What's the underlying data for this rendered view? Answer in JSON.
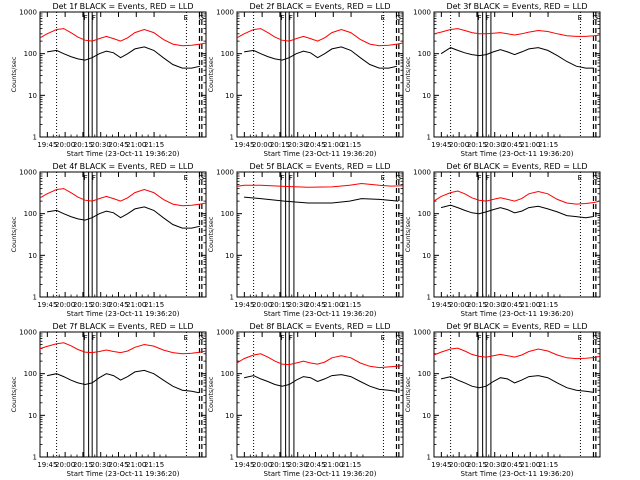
{
  "figure": {
    "xlabel": "Start Time (23-Oct-11 19:36:20)",
    "ylabel": "Counts/sec",
    "xtick_labels": [
      "19:45",
      "20:00",
      "20:15",
      "20:30",
      "20:45",
      "21:00",
      "21:15"
    ],
    "ytick_labels": [
      "1",
      "10",
      "100",
      "1000"
    ],
    "marker_labels": [
      "F",
      "F",
      "E",
      "G"
    ],
    "colors": {
      "events": "#000000",
      "lld": "#ff0000",
      "axes": "#000000"
    }
  },
  "chart_data": [
    {
      "type": "line",
      "title": "Det 1f BLACK = Events, RED = LLD",
      "xlim_min": [
        0,
        100
      ],
      "ylim": [
        1,
        1000
      ],
      "yscale": "log",
      "series": [
        {
          "name": "Events",
          "color": "#000000",
          "x": [
            6,
            14,
            20,
            26,
            32,
            38,
            44,
            50,
            56,
            62,
            68,
            74,
            80,
            88,
            96,
            104,
            112,
            120,
            128,
            135
          ],
          "y": [
            110,
            120,
            100,
            85,
            75,
            70,
            80,
            100,
            115,
            105,
            80,
            100,
            130,
            145,
            120,
            80,
            55,
            45,
            45,
            50
          ]
        },
        {
          "name": "LLD",
          "color": "#ff0000",
          "x": [
            0,
            6,
            14,
            20,
            26,
            32,
            38,
            44,
            50,
            56,
            62,
            68,
            74,
            80,
            88,
            96,
            104,
            112,
            120,
            128,
            135,
            140
          ],
          "y": [
            240,
            300,
            380,
            400,
            320,
            250,
            210,
            200,
            230,
            260,
            230,
            200,
            240,
            320,
            380,
            320,
            220,
            170,
            155,
            160,
            170,
            180
          ]
        }
      ]
    },
    {
      "type": "line",
      "title": "Det 2f BLACK = Events, RED = LLD",
      "xlim_min": [
        0,
        100
      ],
      "ylim": [
        1,
        1000
      ],
      "yscale": "log",
      "series": [
        {
          "name": "Events",
          "color": "#000000",
          "x": [
            6,
            14,
            20,
            26,
            32,
            38,
            44,
            50,
            56,
            62,
            68,
            74,
            80,
            88,
            96,
            104,
            112,
            120,
            128,
            135
          ],
          "y": [
            110,
            120,
            100,
            85,
            75,
            70,
            80,
            100,
            115,
            105,
            80,
            100,
            130,
            145,
            120,
            80,
            55,
            45,
            45,
            50
          ]
        },
        {
          "name": "LLD",
          "color": "#ff0000",
          "x": [
            0,
            6,
            14,
            20,
            26,
            32,
            38,
            44,
            50,
            56,
            62,
            68,
            74,
            80,
            88,
            96,
            104,
            112,
            120,
            128,
            135,
            140
          ],
          "y": [
            240,
            300,
            380,
            400,
            320,
            250,
            210,
            200,
            230,
            260,
            230,
            200,
            240,
            320,
            380,
            320,
            220,
            170,
            155,
            160,
            170,
            180
          ]
        }
      ]
    },
    {
      "type": "line",
      "title": "Det 3f BLACK = Events, RED = LLD",
      "xlim_min": [
        0,
        100
      ],
      "ylim": [
        1,
        1000
      ],
      "yscale": "log",
      "series": [
        {
          "name": "Events",
          "color": "#000000",
          "x": [
            6,
            14,
            20,
            26,
            32,
            38,
            44,
            50,
            56,
            62,
            68,
            74,
            80,
            88,
            96,
            104,
            112,
            120,
            128,
            135
          ],
          "y": [
            100,
            140,
            120,
            105,
            95,
            90,
            95,
            110,
            125,
            110,
            95,
            110,
            130,
            140,
            120,
            90,
            65,
            50,
            45,
            45
          ]
        },
        {
          "name": "LLD",
          "color": "#ff0000",
          "x": [
            0,
            6,
            14,
            20,
            26,
            32,
            38,
            44,
            50,
            56,
            62,
            68,
            74,
            80,
            88,
            96,
            104,
            112,
            120,
            128,
            135,
            140
          ],
          "y": [
            300,
            330,
            380,
            400,
            360,
            320,
            300,
            300,
            310,
            320,
            300,
            280,
            300,
            330,
            360,
            340,
            300,
            270,
            260,
            260,
            270,
            280
          ]
        }
      ]
    },
    {
      "type": "line",
      "title": "Det 4f BLACK = Events, RED = LLD",
      "xlim_min": [
        0,
        100
      ],
      "ylim": [
        1,
        1000
      ],
      "yscale": "log",
      "series": [
        {
          "name": "Events",
          "color": "#000000",
          "x": [
            6,
            14,
            20,
            26,
            32,
            38,
            44,
            50,
            56,
            62,
            68,
            74,
            80,
            88,
            96,
            104,
            112,
            120,
            128,
            135
          ],
          "y": [
            110,
            120,
            100,
            85,
            75,
            70,
            80,
            100,
            115,
            105,
            80,
            100,
            130,
            145,
            120,
            80,
            55,
            45,
            45,
            50
          ]
        },
        {
          "name": "LLD",
          "color": "#ff0000",
          "x": [
            0,
            6,
            14,
            20,
            26,
            32,
            38,
            44,
            50,
            56,
            62,
            68,
            74,
            80,
            88,
            96,
            104,
            112,
            120,
            128,
            135,
            140
          ],
          "y": [
            240,
            300,
            380,
            400,
            320,
            250,
            210,
            200,
            230,
            260,
            230,
            200,
            240,
            320,
            380,
            320,
            220,
            170,
            155,
            160,
            170,
            180
          ]
        }
      ]
    },
    {
      "type": "line",
      "title": "Det 5f BLACK = Events, RED = LLD",
      "xlim_min": [
        0,
        100
      ],
      "ylim": [
        1,
        1000
      ],
      "yscale": "log",
      "series": [
        {
          "name": "Events",
          "color": "#000000",
          "x": [
            6,
            20,
            40,
            60,
            80,
            95,
            105,
            120,
            128,
            136
          ],
          "y": [
            250,
            230,
            200,
            180,
            180,
            200,
            230,
            220,
            210,
            200
          ]
        },
        {
          "name": "LLD",
          "color": "#ff0000",
          "x": [
            0,
            6,
            20,
            40,
            60,
            80,
            95,
            105,
            120,
            130,
            140
          ],
          "y": [
            450,
            480,
            480,
            450,
            430,
            440,
            480,
            530,
            480,
            460,
            470
          ]
        }
      ]
    },
    {
      "type": "line",
      "title": "Det 6f BLACK = Events, RED = LLD",
      "xlim_min": [
        0,
        100
      ],
      "ylim": [
        1,
        1000
      ],
      "yscale": "log",
      "series": [
        {
          "name": "Events",
          "color": "#000000",
          "x": [
            6,
            14,
            20,
            26,
            32,
            38,
            44,
            50,
            56,
            62,
            68,
            74,
            80,
            88,
            96,
            104,
            112,
            120,
            128,
            134
          ],
          "y": [
            140,
            160,
            140,
            120,
            105,
            100,
            110,
            125,
            140,
            125,
            105,
            115,
            140,
            150,
            130,
            110,
            90,
            85,
            80,
            85
          ]
        },
        {
          "name": "LLD",
          "color": "#ff0000",
          "x": [
            0,
            6,
            14,
            20,
            26,
            32,
            38,
            44,
            50,
            56,
            62,
            68,
            74,
            80,
            88,
            96,
            104,
            112,
            120,
            128,
            135,
            140
          ],
          "y": [
            200,
            260,
            320,
            350,
            300,
            240,
            210,
            200,
            220,
            240,
            220,
            200,
            230,
            300,
            340,
            300,
            220,
            180,
            170,
            175,
            185,
            200
          ]
        }
      ]
    },
    {
      "type": "line",
      "title": "Det 7f BLACK = Events, RED = LLD",
      "xlim_min": [
        0,
        100
      ],
      "ylim": [
        1,
        1000
      ],
      "yscale": "log",
      "series": [
        {
          "name": "Events",
          "color": "#000000",
          "x": [
            6,
            14,
            20,
            26,
            32,
            38,
            44,
            50,
            56,
            62,
            68,
            74,
            80,
            88,
            96,
            104,
            112,
            120,
            128,
            134
          ],
          "y": [
            90,
            100,
            85,
            70,
            60,
            55,
            60,
            80,
            100,
            90,
            70,
            85,
            110,
            120,
            100,
            70,
            50,
            40,
            38,
            35
          ]
        },
        {
          "name": "LLD",
          "color": "#ff0000",
          "x": [
            0,
            6,
            14,
            20,
            26,
            32,
            38,
            44,
            50,
            56,
            62,
            68,
            74,
            80,
            88,
            96,
            104,
            112,
            120,
            128,
            135,
            140
          ],
          "y": [
            400,
            450,
            520,
            550,
            470,
            380,
            330,
            320,
            340,
            370,
            340,
            320,
            350,
            430,
            500,
            460,
            370,
            320,
            300,
            310,
            330,
            350
          ]
        }
      ]
    },
    {
      "type": "line",
      "title": "Det 8f BLACK = Events, RED = LLD",
      "xlim_min": [
        0,
        100
      ],
      "ylim": [
        1,
        1000
      ],
      "yscale": "log",
      "series": [
        {
          "name": "Events",
          "color": "#000000",
          "x": [
            6,
            14,
            20,
            26,
            32,
            38,
            44,
            50,
            56,
            62,
            68,
            74,
            80,
            88,
            96,
            104,
            112,
            120,
            128,
            134
          ],
          "y": [
            80,
            90,
            75,
            65,
            55,
            50,
            55,
            70,
            85,
            80,
            65,
            75,
            90,
            95,
            85,
            65,
            50,
            42,
            40,
            38
          ]
        },
        {
          "name": "LLD",
          "color": "#ff0000",
          "x": [
            0,
            6,
            14,
            20,
            26,
            32,
            38,
            44,
            50,
            56,
            62,
            68,
            74,
            80,
            88,
            96,
            104,
            112,
            120,
            128,
            135,
            140
          ],
          "y": [
            180,
            230,
            280,
            300,
            250,
            200,
            170,
            165,
            180,
            200,
            180,
            170,
            190,
            240,
            270,
            240,
            180,
            150,
            140,
            145,
            150,
            160
          ]
        }
      ]
    },
    {
      "type": "line",
      "title": "Det 9f BLACK = Events, RED = LLD",
      "xlim_min": [
        0,
        100
      ],
      "ylim": [
        1,
        1000
      ],
      "yscale": "log",
      "series": [
        {
          "name": "Events",
          "color": "#000000",
          "x": [
            6,
            14,
            20,
            26,
            32,
            38,
            44,
            50,
            56,
            62,
            68,
            74,
            80,
            88,
            96,
            104,
            112,
            120,
            128,
            134
          ],
          "y": [
            75,
            85,
            70,
            60,
            50,
            46,
            50,
            65,
            80,
            75,
            60,
            70,
            85,
            90,
            80,
            60,
            46,
            40,
            38,
            36
          ]
        },
        {
          "name": "LLD",
          "color": "#ff0000",
          "x": [
            0,
            6,
            14,
            20,
            26,
            32,
            38,
            44,
            50,
            56,
            62,
            68,
            74,
            80,
            88,
            96,
            104,
            112,
            120,
            128,
            135,
            140
          ],
          "y": [
            280,
            330,
            390,
            410,
            350,
            290,
            260,
            250,
            270,
            290,
            270,
            250,
            280,
            340,
            390,
            350,
            280,
            240,
            230,
            235,
            245,
            260
          ]
        }
      ]
    }
  ]
}
